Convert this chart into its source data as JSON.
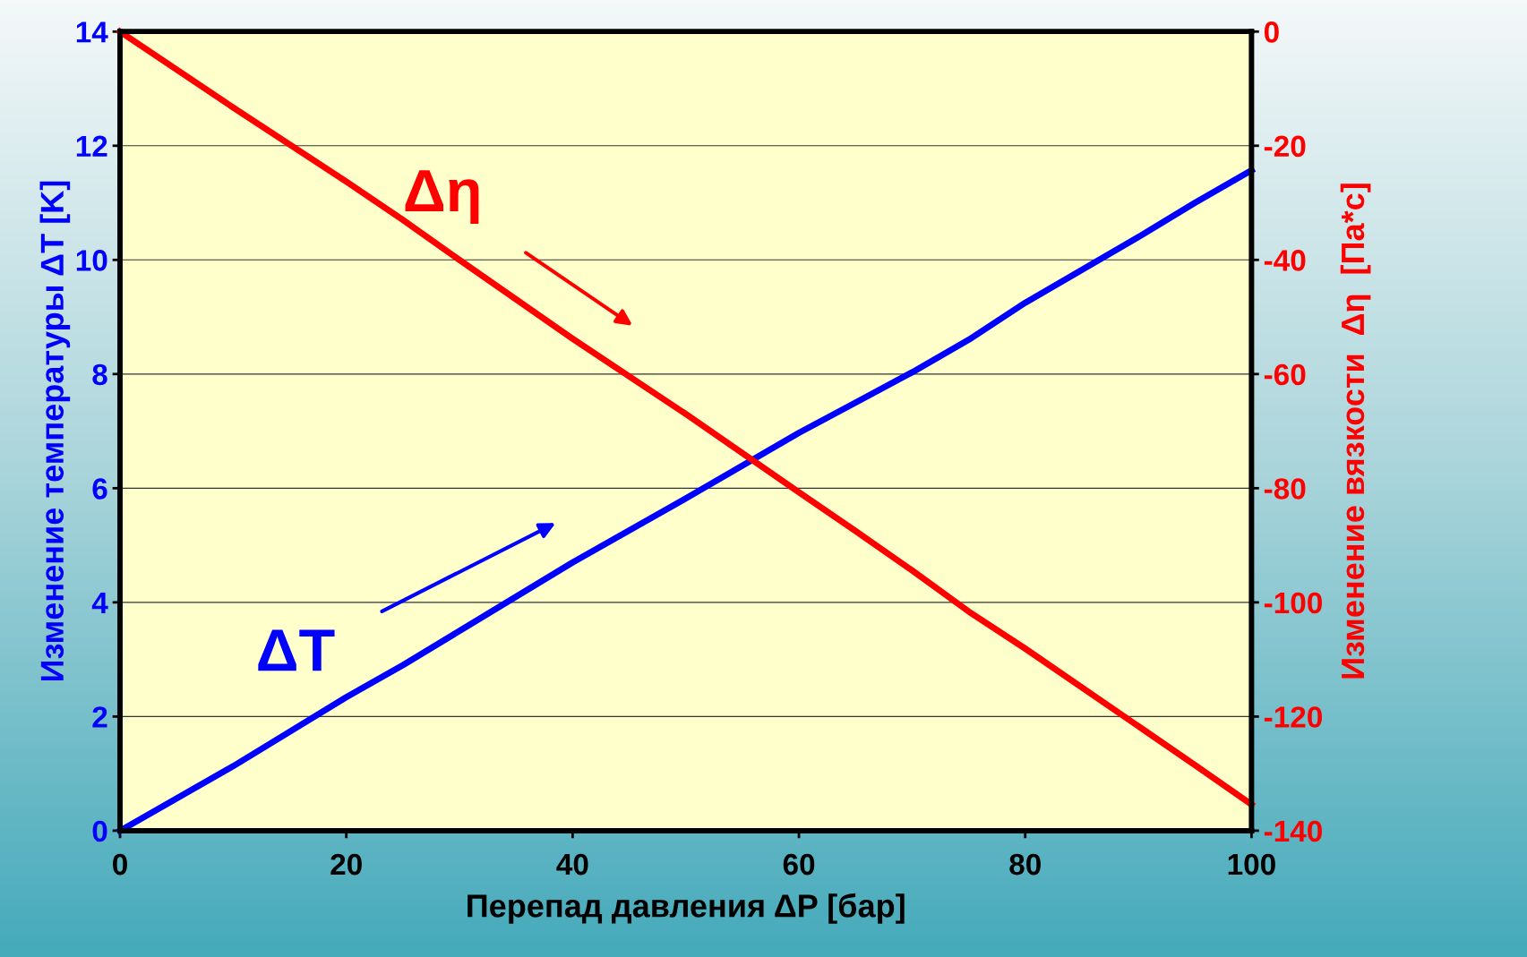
{
  "chart_data": {
    "type": "line",
    "xlabel": "Перепад давления ΔP [бар]",
    "ylabel": "Изменение температуры ΔT [K]",
    "y2label": "Изменение вязкости  Δη  [Па*с]",
    "x": [
      0,
      10,
      20,
      25,
      30,
      40,
      50,
      60,
      65,
      70,
      75,
      80,
      90,
      95,
      100
    ],
    "series": [
      {
        "color": "#0000ff",
        "values": [
          0,
          1.13,
          2.34,
          2.9,
          3.5,
          4.7,
          5.82,
          6.97,
          7.5,
          8.03,
          8.6,
          9.25,
          10.4,
          11.0,
          11.57
        ]
      },
      {
        "color": "#ff0000",
        "axis": "y2",
        "values": [
          0,
          -13.3,
          -26.3,
          -33,
          -40,
          -53.8,
          -67,
          -80.7,
          -87.5,
          -94.4,
          -101.6,
          -108.1,
          -121.7,
          -128.5,
          -135.4
        ]
      }
    ],
    "annotations": [
      "ΔT",
      "Δη"
    ],
    "xlim": [
      0,
      100
    ],
    "xticks": [
      0,
      20,
      40,
      60,
      80,
      100
    ],
    "ylim": [
      0,
      14
    ],
    "yticks": [
      0,
      2,
      4,
      6,
      8,
      10,
      12,
      14
    ],
    "y2lim": [
      -140,
      0
    ],
    "y2ticks": [
      -140,
      -120,
      -100,
      -80,
      -60,
      -40,
      -20,
      0
    ],
    "grid": "y",
    "legend": false,
    "marker": "none",
    "line_style": "solid"
  }
}
